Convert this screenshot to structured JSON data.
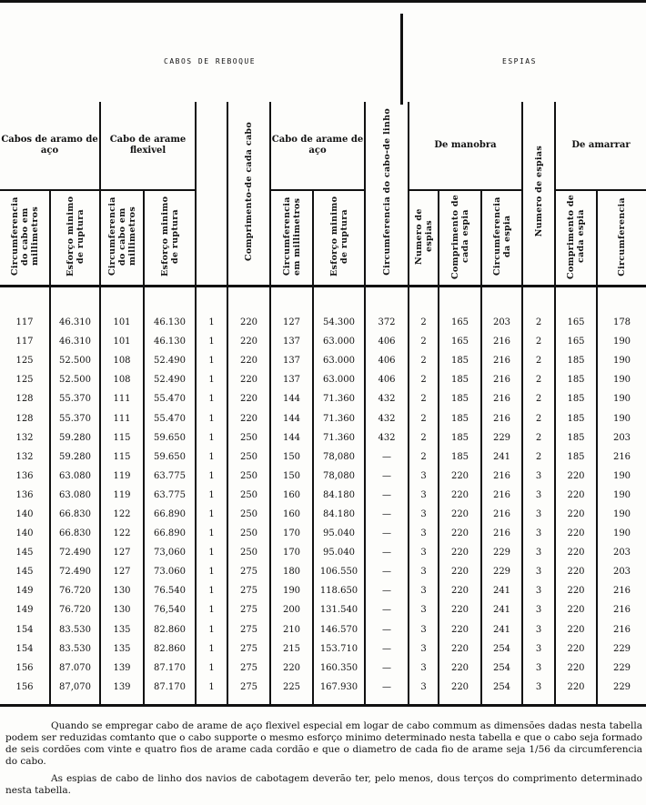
{
  "top": {
    "left_title": "CABOS DE REBOQUE",
    "right_title": "ESPIAS"
  },
  "groups": {
    "cabos_aco": "Cabos de aramo de aço",
    "cabo_flexivel": "Cabo de arame flexivel",
    "comprimento": "Comprimento-de cada cabo",
    "cabo_aco2": "Cabo de arame de aço",
    "cabo_linho": "Circumferencia do cabo-de linho",
    "manobra": "De manobra",
    "numero_espias": "Numero de espias",
    "amarrar": "De amarrar"
  },
  "subheaders": [
    "Circumferencia do cabo em millimetros",
    "Esforço minimo de ruptura",
    "Circumferencia do cabo em millimetros",
    "Esforço minimo de ruptura",
    "",
    "",
    "Circumferencia em millimetros",
    "Esforço minimo de ruptura",
    "",
    "Numero de espias",
    "Comprimento de cada espia",
    "Circumferencia da espia",
    "",
    "Comprimento de cada espia",
    "Circumferencia"
  ],
  "rows": [
    [
      "117",
      "46.310",
      "101",
      "46.130",
      "1",
      "220",
      "127",
      "54.300",
      "372",
      "2",
      "165",
      "203",
      "2",
      "165",
      "178"
    ],
    [
      "117",
      "46.310",
      "101",
      "46.130",
      "1",
      "220",
      "137",
      "63.000",
      "406",
      "2",
      "165",
      "216",
      "2",
      "165",
      "190"
    ],
    [
      "125",
      "52.500",
      "108",
      "52.490",
      "1",
      "220",
      "137",
      "63.000",
      "406",
      "2",
      "185",
      "216",
      "2",
      "185",
      "190"
    ],
    [
      "125",
      "52.500",
      "108",
      "52.490",
      "1",
      "220",
      "137",
      "63.000",
      "406",
      "2",
      "185",
      "216",
      "2",
      "185",
      "190"
    ],
    [
      "128",
      "55.370",
      "111",
      "55.470",
      "1",
      "220",
      "144",
      "71.360",
      "432",
      "2",
      "185",
      "216",
      "2",
      "185",
      "190"
    ],
    [
      "128",
      "55.370",
      "111",
      "55.470",
      "1",
      "220",
      "144",
      "71.360",
      "432",
      "2",
      "185",
      "216",
      "2",
      "185",
      "190"
    ],
    [
      "132",
      "59.280",
      "115",
      "59.650",
      "1",
      "250",
      "144",
      "71.360",
      "432",
      "2",
      "185",
      "229",
      "2",
      "185",
      "203"
    ],
    [
      "132",
      "59.280",
      "115",
      "59.650",
      "1",
      "250",
      "150",
      "78,080",
      "—",
      "2",
      "185",
      "241",
      "2",
      "185",
      "216"
    ],
    [
      "136",
      "63.080",
      "119",
      "63.775",
      "1",
      "250",
      "150",
      "78,080",
      "—",
      "3",
      "220",
      "216",
      "3",
      "220",
      "190"
    ],
    [
      "136",
      "63.080",
      "119",
      "63.775",
      "1",
      "250",
      "160",
      "84.180",
      "—",
      "3",
      "220",
      "216",
      "3",
      "220",
      "190"
    ],
    [
      "140",
      "66.830",
      "122",
      "66.890",
      "1",
      "250",
      "160",
      "84.180",
      "—",
      "3",
      "220",
      "216",
      "3",
      "220",
      "190"
    ],
    [
      "140",
      "66.830",
      "122",
      "66.890",
      "1",
      "250",
      "170",
      "95.040",
      "—",
      "3",
      "220",
      "216",
      "3",
      "220",
      "190"
    ],
    [
      "145",
      "72.490",
      "127",
      "73,060",
      "1",
      "250",
      "170",
      "95.040",
      "—",
      "3",
      "220",
      "229",
      "3",
      "220",
      "203"
    ],
    [
      "145",
      "72.490",
      "127",
      "73.060",
      "1",
      "275",
      "180",
      "106.550",
      "—",
      "3",
      "220",
      "229",
      "3",
      "220",
      "203"
    ],
    [
      "149",
      "76.720",
      "130",
      "76.540",
      "1",
      "275",
      "190",
      "118.650",
      "—",
      "3",
      "220",
      "241",
      "3",
      "220",
      "216"
    ],
    [
      "149",
      "76.720",
      "130",
      "76,540",
      "1",
      "275",
      "200",
      "131.540",
      "—",
      "3",
      "220",
      "241",
      "3",
      "220",
      "216"
    ],
    [
      "154",
      "83.530",
      "135",
      "82.860",
      "1",
      "275",
      "210",
      "146.570",
      "—",
      "3",
      "220",
      "241",
      "3",
      "220",
      "216"
    ],
    [
      "154",
      "83.530",
      "135",
      "82.860",
      "1",
      "275",
      "215",
      "153.710",
      "—",
      "3",
      "220",
      "254",
      "3",
      "220",
      "229"
    ],
    [
      "156",
      "87.070",
      "139",
      "87.170",
      "1",
      "275",
      "220",
      "160.350",
      "—",
      "3",
      "220",
      "254",
      "3",
      "220",
      "229"
    ],
    [
      "156",
      "87,070",
      "139",
      "87.170",
      "1",
      "275",
      "225",
      "167.930",
      "—",
      "3",
      "220",
      "254",
      "3",
      "220",
      "229"
    ]
  ],
  "footer": {
    "note1": "Quando se empregar cabo de arame de aço flexivel especial em logar de cabo commum as dimensões dadas nesta tabella podem ser reduzidas comtanto que o cabo supporte o mesmo esforço minimo determinado nesta tabella e que o cabo seja formado de seis cordões com vinte e quatro fios de arame cada cordão e que o diametro de cada fio de arame seja 1/56 da circumferencia do cabo.",
    "note2": "As espias de cabo de linho dos navios de cabotagem deverão ter, pelo menos, dous terços do comprimento determinado nesta tabella."
  }
}
